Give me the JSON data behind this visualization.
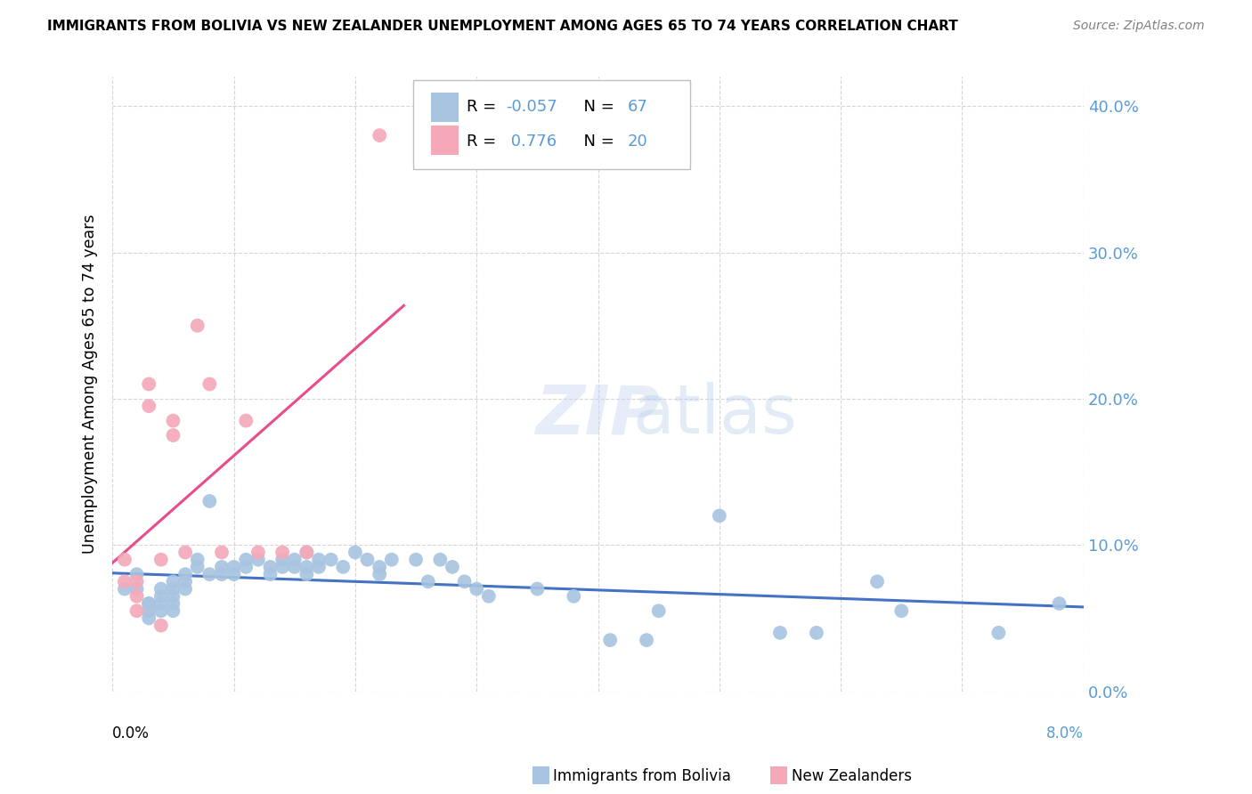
{
  "title": "IMMIGRANTS FROM BOLIVIA VS NEW ZEALANDER UNEMPLOYMENT AMONG AGES 65 TO 74 YEARS CORRELATION CHART",
  "source": "Source: ZipAtlas.com",
  "ylabel": "Unemployment Among Ages 65 to 74 years",
  "xlim": [
    0.0,
    0.08
  ],
  "ylim": [
    0.0,
    0.42
  ],
  "yticks_right": [
    0.0,
    0.1,
    0.2,
    0.3,
    0.4
  ],
  "ytick_labels_right": [
    "0.0%",
    "10.0%",
    "20.0%",
    "30.0%",
    "40.0%"
  ],
  "legend_R1": "-0.057",
  "legend_N1": "67",
  "legend_R2": "0.776",
  "legend_N2": "20",
  "blue_dot_color": "#a8c4e0",
  "pink_dot_color": "#f4a8b8",
  "blue_line_color": "#4472c4",
  "pink_line_color": "#e84c8b",
  "right_axis_color": "#5b9bd5",
  "watermark_zip": "ZIP",
  "watermark_atlas": "atlas",
  "bolivia_x": [
    0.001,
    0.002,
    0.002,
    0.003,
    0.003,
    0.003,
    0.003,
    0.004,
    0.004,
    0.004,
    0.004,
    0.005,
    0.005,
    0.005,
    0.005,
    0.005,
    0.006,
    0.006,
    0.006,
    0.007,
    0.007,
    0.008,
    0.008,
    0.009,
    0.009,
    0.01,
    0.01,
    0.011,
    0.011,
    0.012,
    0.013,
    0.013,
    0.014,
    0.014,
    0.015,
    0.015,
    0.016,
    0.016,
    0.016,
    0.017,
    0.017,
    0.018,
    0.019,
    0.02,
    0.021,
    0.022,
    0.022,
    0.023,
    0.025,
    0.026,
    0.027,
    0.028,
    0.029,
    0.03,
    0.031,
    0.035,
    0.038,
    0.041,
    0.044,
    0.045,
    0.05,
    0.055,
    0.058,
    0.063,
    0.065,
    0.073,
    0.078
  ],
  "bolivia_y": [
    0.07,
    0.07,
    0.08,
    0.06,
    0.06,
    0.055,
    0.05,
    0.07,
    0.065,
    0.06,
    0.055,
    0.075,
    0.07,
    0.065,
    0.06,
    0.055,
    0.08,
    0.075,
    0.07,
    0.09,
    0.085,
    0.13,
    0.08,
    0.085,
    0.08,
    0.085,
    0.08,
    0.09,
    0.085,
    0.09,
    0.085,
    0.08,
    0.09,
    0.085,
    0.09,
    0.085,
    0.095,
    0.085,
    0.08,
    0.09,
    0.085,
    0.09,
    0.085,
    0.095,
    0.09,
    0.085,
    0.08,
    0.09,
    0.09,
    0.075,
    0.09,
    0.085,
    0.075,
    0.07,
    0.065,
    0.07,
    0.065,
    0.035,
    0.035,
    0.055,
    0.12,
    0.04,
    0.04,
    0.075,
    0.055,
    0.04,
    0.06
  ],
  "nz_x": [
    0.001,
    0.001,
    0.002,
    0.002,
    0.002,
    0.003,
    0.003,
    0.004,
    0.004,
    0.005,
    0.005,
    0.006,
    0.007,
    0.008,
    0.009,
    0.011,
    0.012,
    0.014,
    0.016,
    0.022
  ],
  "nz_y": [
    0.09,
    0.075,
    0.075,
    0.065,
    0.055,
    0.21,
    0.195,
    0.09,
    0.045,
    0.185,
    0.175,
    0.095,
    0.25,
    0.21,
    0.095,
    0.185,
    0.095,
    0.095,
    0.095,
    0.38
  ]
}
